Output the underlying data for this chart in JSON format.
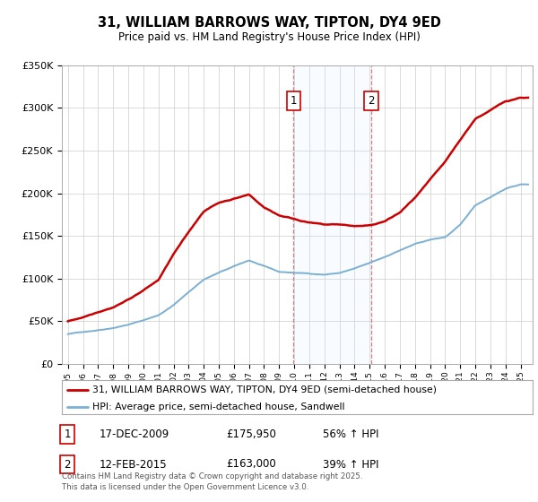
{
  "title": "31, WILLIAM BARROWS WAY, TIPTON, DY4 9ED",
  "subtitle": "Price paid vs. HM Land Registry's House Price Index (HPI)",
  "legend_line1": "31, WILLIAM BARROWS WAY, TIPTON, DY4 9ED (semi-detached house)",
  "legend_line2": "HPI: Average price, semi-detached house, Sandwell",
  "sale1_date": "17-DEC-2009",
  "sale1_price": 175950,
  "sale1_label": "56% ↑ HPI",
  "sale2_date": "12-FEB-2015",
  "sale2_price": 163000,
  "sale2_label": "39% ↑ HPI",
  "sale1_year": 2009.96,
  "sale2_year": 2015.12,
  "footer": "Contains HM Land Registry data © Crown copyright and database right 2025.\nThis data is licensed under the Open Government Licence v3.0.",
  "red_color": "#cc0000",
  "blue_color": "#7ab0d4",
  "shading_color": "#ddeeff",
  "ylim": [
    0,
    350000
  ],
  "xlim_start": 1994.6,
  "xlim_end": 2025.8,
  "hpi_data": {
    "years": [
      1995,
      1996,
      1997,
      1998,
      1999,
      2000,
      2001,
      2002,
      2003,
      2004,
      2005,
      2006,
      2007,
      2008,
      2009,
      2010,
      2011,
      2012,
      2013,
      2014,
      2015,
      2016,
      2017,
      2018,
      2019,
      2020,
      2021,
      2022,
      2023,
      2024,
      2025
    ],
    "values": [
      35000,
      37500,
      40000,
      43000,
      47000,
      52000,
      58000,
      70000,
      85000,
      100000,
      108000,
      115000,
      122000,
      115000,
      108000,
      107000,
      106000,
      105000,
      107000,
      112000,
      118000,
      125000,
      133000,
      140000,
      145000,
      148000,
      162000,
      185000,
      195000,
      205000,
      210000
    ]
  },
  "prop_data": {
    "years": [
      1995,
      1996,
      1997,
      1998,
      1999,
      2000,
      2001,
      2002,
      2003,
      2004,
      2005,
      2006,
      2007,
      2008,
      2009,
      2010,
      2011,
      2012,
      2013,
      2014,
      2015,
      2016,
      2017,
      2018,
      2019,
      2020,
      2021,
      2022,
      2023,
      2024,
      2025
    ],
    "values": [
      50000,
      55000,
      62000,
      68000,
      77000,
      88000,
      100000,
      130000,
      155000,
      180000,
      190000,
      195000,
      200000,
      185000,
      175950,
      172000,
      168000,
      165000,
      165000,
      163000,
      163000,
      168000,
      178000,
      195000,
      215000,
      235000,
      260000,
      285000,
      295000,
      305000,
      310000
    ]
  }
}
